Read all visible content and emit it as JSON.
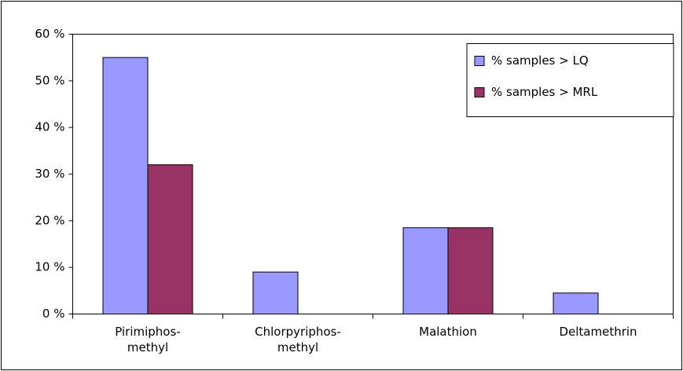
{
  "chart_data": {
    "type": "bar",
    "categories": [
      "Pirimiphos-methyl",
      "Chlorpyriphos-methyl",
      "Malathion",
      "Deltamethrin"
    ],
    "series": [
      {
        "name": "% samples > LQ",
        "color": "#9999ff",
        "values": [
          55,
          9,
          18.5,
          4.5
        ]
      },
      {
        "name": "% samples > MRL",
        "color": "#993366",
        "values": [
          32,
          0,
          18.5,
          0
        ]
      }
    ],
    "ylim": [
      0,
      60
    ],
    "yticks": [
      {
        "value": 0,
        "label": "0 %"
      },
      {
        "value": 10,
        "label": "10 %"
      },
      {
        "value": 20,
        "label": "20 %"
      },
      {
        "value": 30,
        "label": "30 %"
      },
      {
        "value": 40,
        "label": "40 %"
      },
      {
        "value": 50,
        "label": "50 %"
      },
      {
        "value": 60,
        "label": "60 %"
      }
    ],
    "legend": "upper right"
  }
}
